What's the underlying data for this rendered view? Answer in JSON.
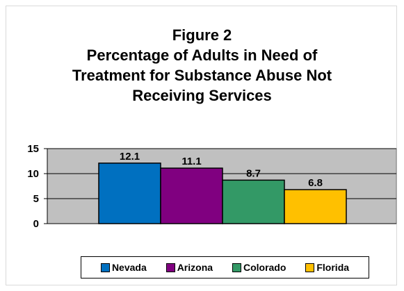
{
  "chart_data": {
    "type": "bar",
    "title_lines": [
      "Figure 2",
      "Percentage of Adults in Need of",
      "Treatment for Substance Abuse Not",
      "Receiving Services"
    ],
    "categories": [
      "Nevada",
      "Arizona",
      "Colorado",
      "Florida"
    ],
    "values": [
      12.1,
      11.1,
      8.7,
      6.8
    ],
    "value_labels": [
      "12.1",
      "11.1",
      "8.7",
      "6.8"
    ],
    "colors": [
      "#0070c0",
      "#800080",
      "#339966",
      "#ffc000"
    ],
    "yticks": [
      {
        "value": 0,
        "label": "0"
      },
      {
        "value": 5,
        "label": "5"
      },
      {
        "value": 10,
        "label": "10"
      },
      {
        "value": 15,
        "label": "15"
      }
    ],
    "ylim": [
      0,
      15
    ],
    "grid": true,
    "plot_background": "#c0c0c0",
    "legend_position": "bottom",
    "xlabel": "",
    "ylabel": ""
  }
}
